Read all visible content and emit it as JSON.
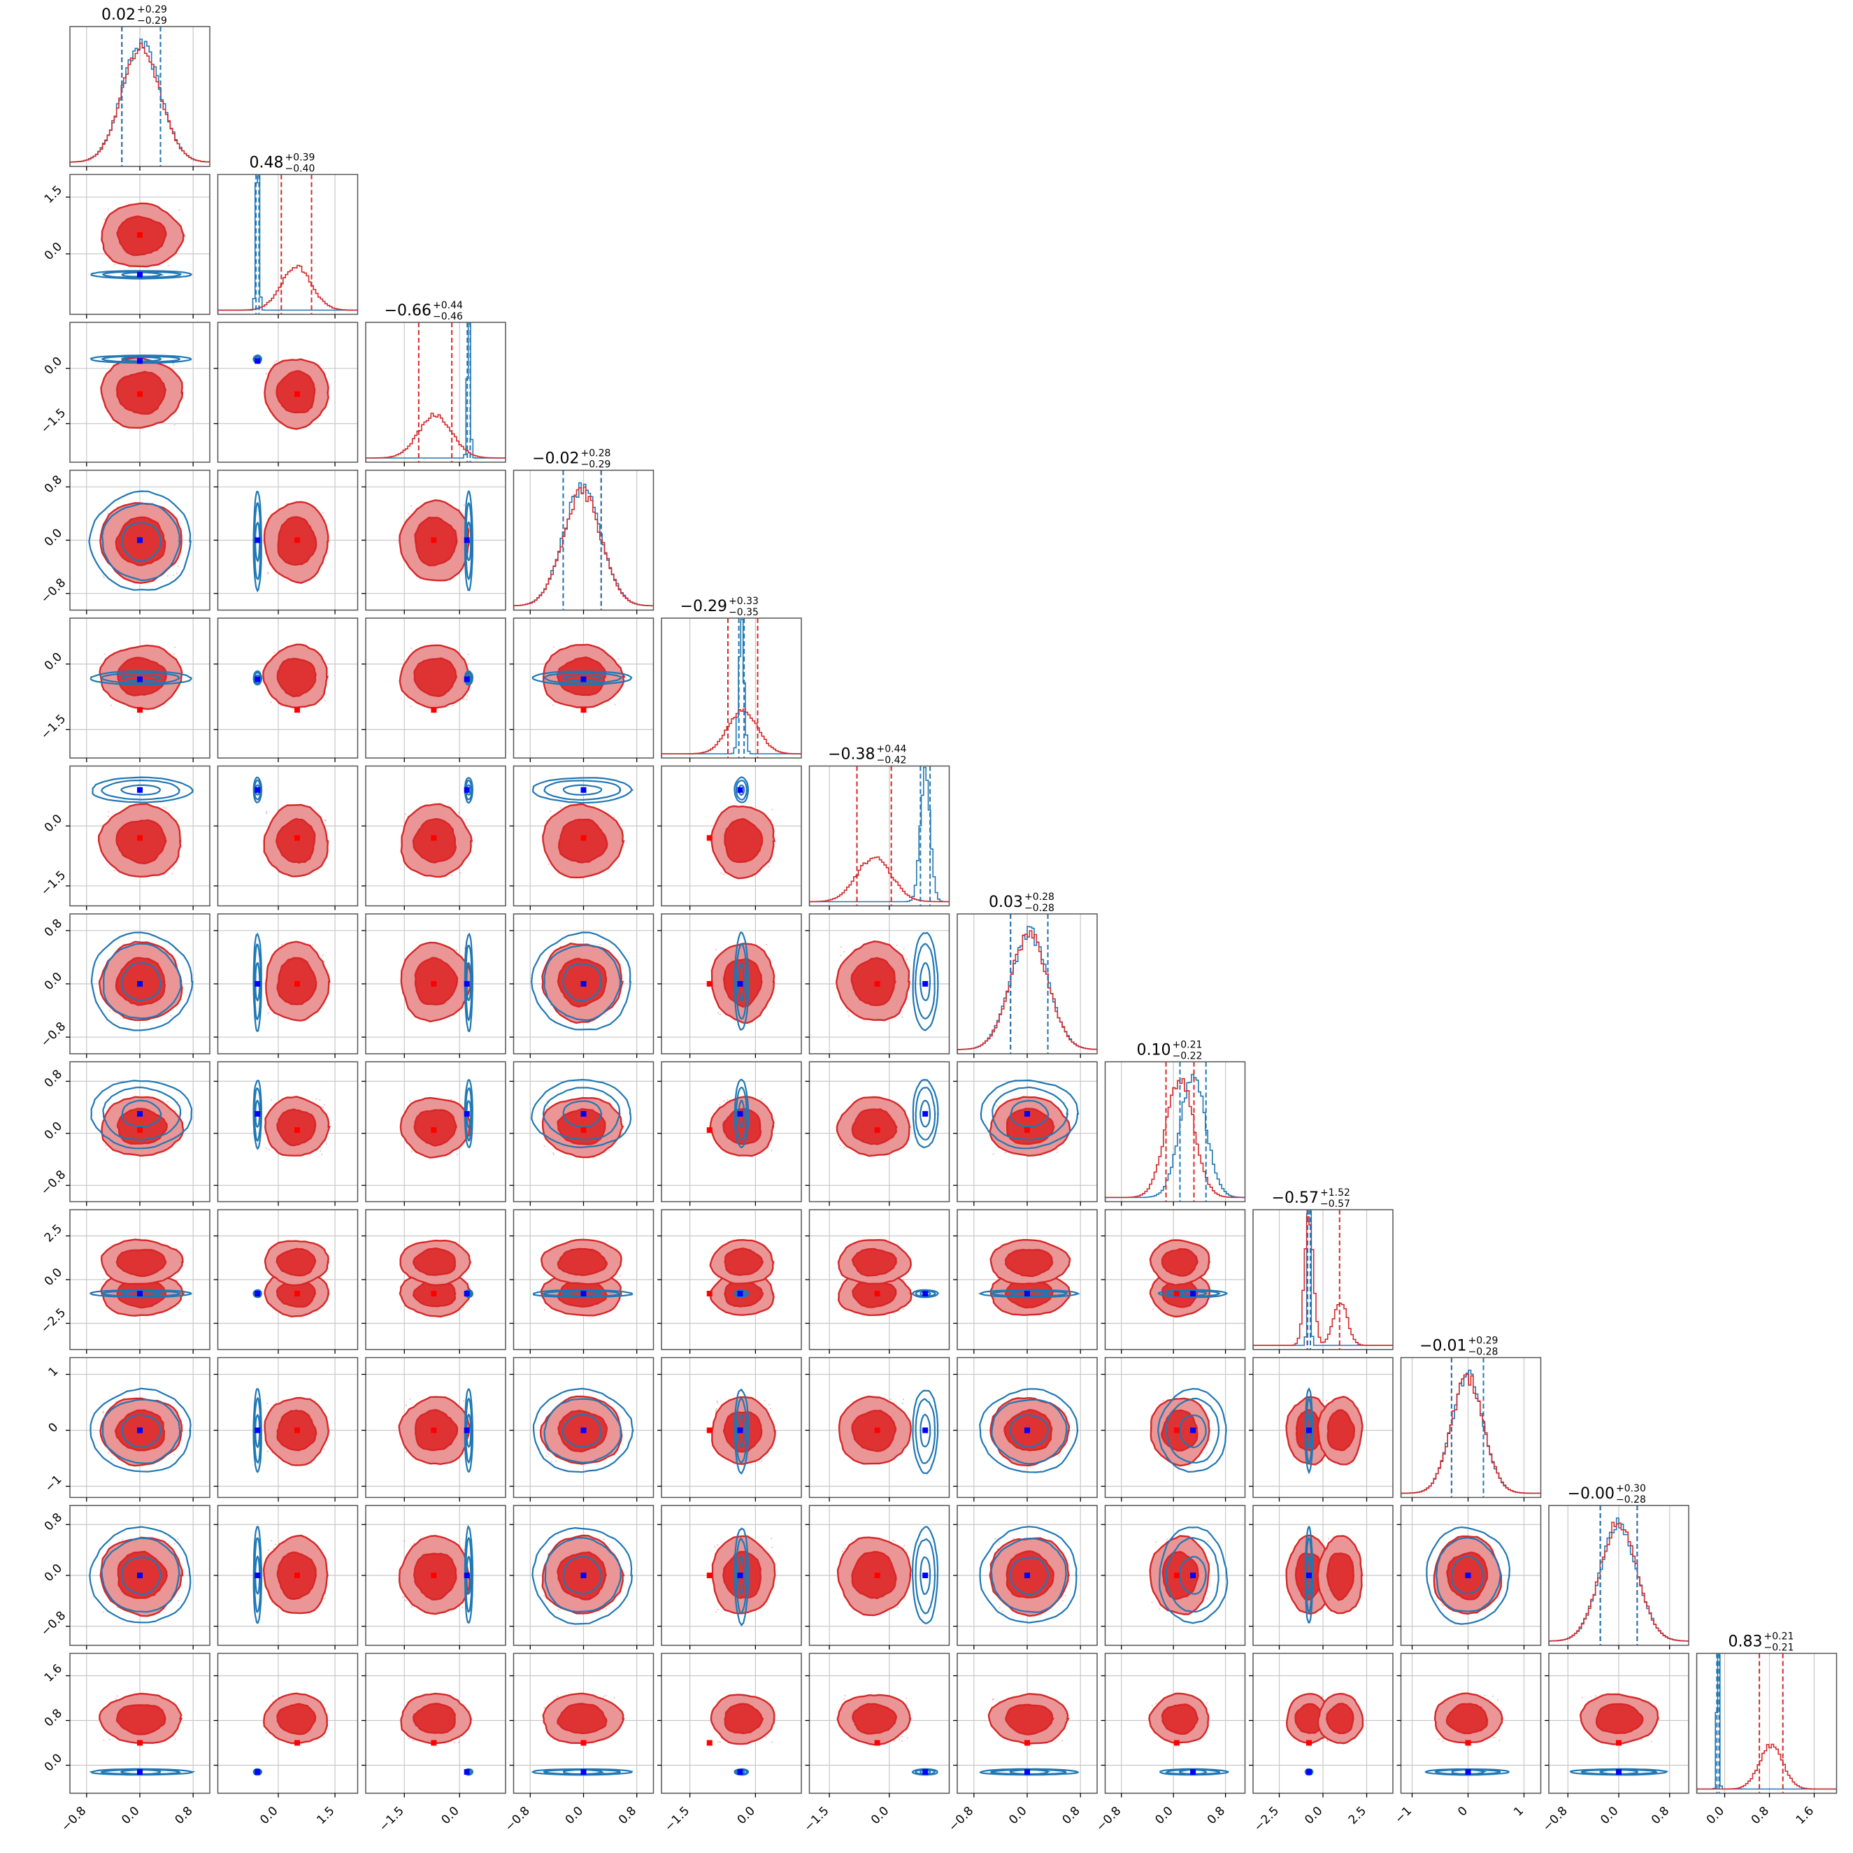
{
  "chart_data": {
    "type": "corner",
    "n_params": 12,
    "colors": {
      "red": "#d62728",
      "blue": "#1f77b4",
      "truth_red": "#ff0000",
      "truth_blue": "#0000ff",
      "frame": "#555555",
      "grid": "#c8c8c8"
    },
    "diag_titles": [
      {
        "main": "0.02",
        "sup": "+0.29",
        "sub": "−0.29"
      },
      {
        "main": "0.48",
        "sup": "+0.39",
        "sub": "−0.40"
      },
      {
        "main": "−0.66",
        "sup": "+0.44",
        "sub": "−0.46"
      },
      {
        "main": "−0.02",
        "sup": "+0.28",
        "sub": "−0.29"
      },
      {
        "main": "−0.29",
        "sup": "+0.33",
        "sub": "−0.35"
      },
      {
        "main": "−0.38",
        "sup": "+0.44",
        "sub": "−0.42"
      },
      {
        "main": "0.03",
        "sup": "+0.28",
        "sub": "−0.28"
      },
      {
        "main": "0.10",
        "sup": "+0.21",
        "sub": "−0.22"
      },
      {
        "main": "−0.57",
        "sup": "+1.52",
        "sub": "−0.57"
      },
      {
        "main": "−0.01",
        "sup": "+0.29",
        "sub": "−0.28"
      },
      {
        "main": "−0.00",
        "sup": "+0.30",
        "sub": "−0.28"
      },
      {
        "main": "0.83",
        "sup": "+0.21",
        "sub": "−0.21"
      }
    ],
    "ranges": [
      [
        -1.05,
        1.05
      ],
      [
        -1.6,
        2.1
      ],
      [
        -2.55,
        1.25
      ],
      [
        -1.05,
        1.05
      ],
      [
        -2.15,
        1.05
      ],
      [
        -2.0,
        1.5
      ],
      [
        -1.05,
        1.05
      ],
      [
        -1.05,
        1.1
      ],
      [
        -4.0,
        4.0
      ],
      [
        -1.2,
        1.3
      ],
      [
        -1.1,
        1.1
      ],
      [
        -0.5,
        2.0
      ]
    ],
    "ticks": [
      [
        "−0.8",
        "0.0",
        "0.8"
      ],
      [
        "0.0",
        "1.5"
      ],
      [
        "−1.5",
        "0.0"
      ],
      [
        "−0.8",
        "0.0",
        "0.8"
      ],
      [
        "−1.5",
        "0.0"
      ],
      [
        "−1.5",
        "0.0"
      ],
      [
        "−0.8",
        "0.0",
        "0.8"
      ],
      [
        "−0.8",
        "0.0",
        "0.8"
      ],
      [
        "−2.5",
        "0.0",
        "2.5"
      ],
      [
        "−1",
        "0",
        "1"
      ],
      [
        "−0.8",
        "0.0",
        "0.8"
      ],
      [
        "0.0",
        "0.8",
        "1.6"
      ]
    ],
    "tick_values": [
      [
        -0.8,
        0,
        0.8
      ],
      [
        0,
        1.5
      ],
      [
        -1.5,
        0
      ],
      [
        -0.8,
        0,
        0.8
      ],
      [
        -1.5,
        0
      ],
      [
        -1.5,
        0
      ],
      [
        -0.8,
        0,
        0.8
      ],
      [
        -0.8,
        0,
        0.8
      ],
      [
        -2.5,
        0,
        2.5
      ],
      [
        -1,
        0,
        1
      ],
      [
        -0.8,
        0,
        0.8
      ],
      [
        0,
        0.8,
        1.6
      ]
    ],
    "red_posterior": {
      "mean": [
        0.02,
        0.48,
        -0.66,
        -0.02,
        -0.29,
        -0.38,
        0.03,
        0.1,
        -0.57,
        -0.01,
        0.0,
        0.83
      ],
      "sigma": [
        0.29,
        0.4,
        0.45,
        0.285,
        0.34,
        0.43,
        0.28,
        0.215,
        0.6,
        0.285,
        0.29,
        0.21
      ]
    },
    "blue_posterior": {
      "mean": [
        0.02,
        -0.55,
        0.25,
        -0.02,
        -0.32,
        0.9,
        0.03,
        0.3,
        -0.8,
        -0.01,
        0.0,
        -0.12
      ],
      "sigma": [
        0.29,
        0.04,
        0.04,
        0.285,
        0.06,
        0.12,
        0.28,
        0.2,
        0.08,
        0.285,
        0.29,
        0.02
      ]
    },
    "truths": {
      "red": [
        0.0,
        0.5,
        -0.7,
        0.0,
        -1.05,
        -0.3,
        0.0,
        0.05,
        -0.8,
        0.0,
        0.0,
        0.4
      ],
      "blue": [
        0.0,
        -0.55,
        0.2,
        0.0,
        -0.35,
        0.9,
        0.0,
        0.3,
        -0.8,
        0.0,
        0.0,
        -0.12
      ]
    },
    "bimodal_param_index": 8,
    "grid": true
  }
}
